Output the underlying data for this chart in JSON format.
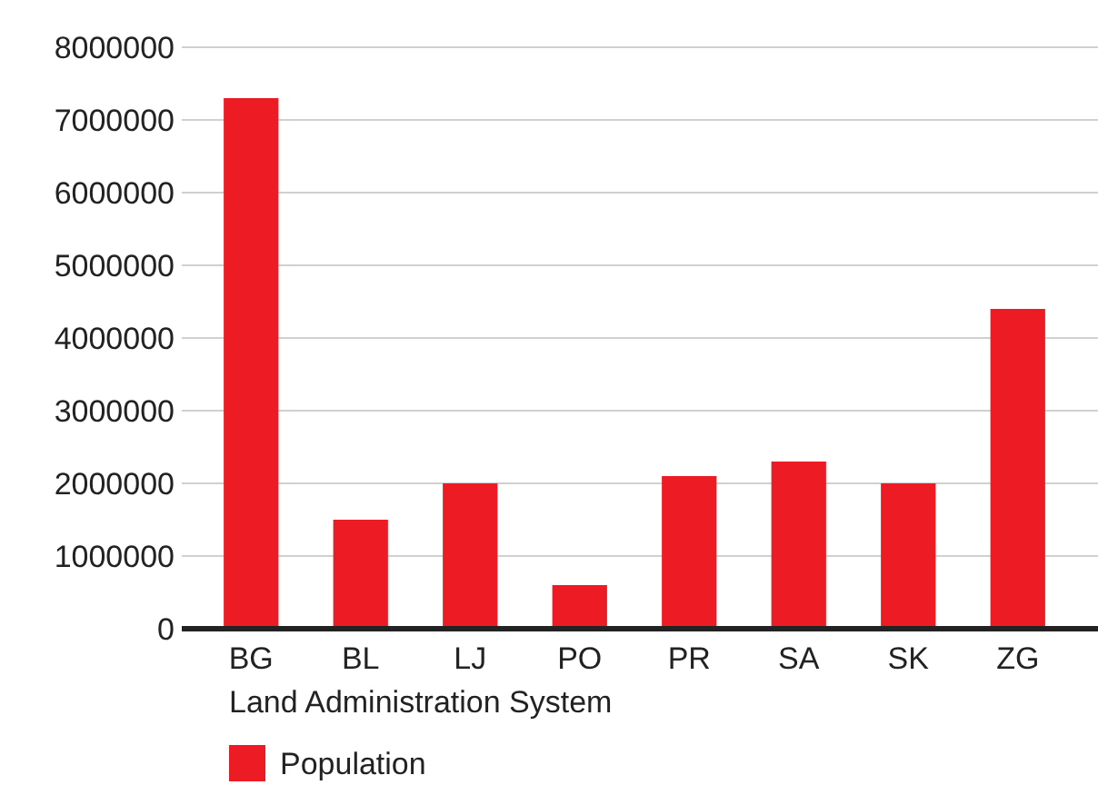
{
  "chart_data": {
    "type": "bar",
    "xlabel": "Land Administration System",
    "categories": [
      "BG",
      "BL",
      "LJ",
      "PO",
      "PR",
      "SA",
      "SK",
      "ZG"
    ],
    "series": [
      {
        "name": "Population",
        "color": "#ed1c24",
        "values": [
          7300000,
          1500000,
          2000000,
          600000,
          2100000,
          2300000,
          2000000,
          4400000
        ]
      }
    ],
    "ylim": [
      0,
      8000000
    ],
    "yticks": [
      0,
      1000000,
      2000000,
      3000000,
      4000000,
      5000000,
      6000000,
      7000000,
      8000000
    ],
    "grid": "y",
    "legend": "bottom left"
  }
}
